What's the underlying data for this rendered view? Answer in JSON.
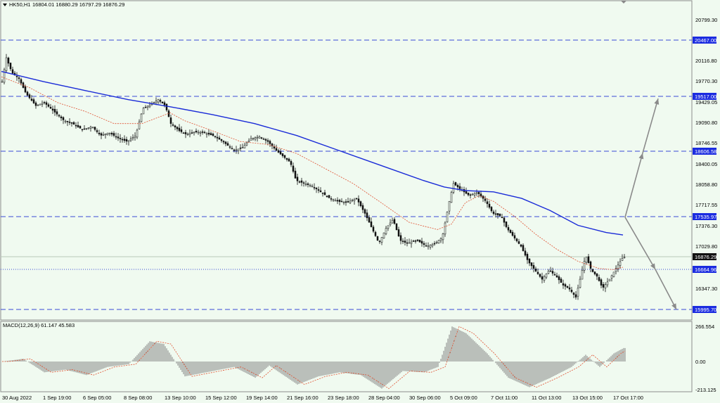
{
  "header": {
    "symbol_label": "HK50,H1",
    "ohlc": "16804.01 16880.29 16797.29 16876.29"
  },
  "macd_panel": {
    "label": "MACD(12,26,9) 61.147 45.583",
    "ticks": [
      "266.554",
      "0.00",
      "-213.125"
    ]
  },
  "price_axis": {
    "ticks": [
      "20799.30",
      "20116.80",
      "19770.30",
      "19429.05",
      "19090.80",
      "18746.55",
      "18400.05",
      "18058.80",
      "17717.55",
      "17376.30",
      "17029.80",
      "16347.30"
    ]
  },
  "levels": [
    {
      "price": "20467.00",
      "style": "dashed"
    },
    {
      "price": "19517.00",
      "style": "dashed"
    },
    {
      "price": "18606.58",
      "style": "dashed"
    },
    {
      "price": "17535.97",
      "style": "dashed"
    },
    {
      "price": "16664.96",
      "style": "dotted"
    },
    {
      "price": "15995.70",
      "style": "dashed"
    }
  ],
  "current_price": "16876.29",
  "time_axis": {
    "ticks": [
      "30 Aug 2022",
      "1 Sep 19:00",
      "6 Sep 05:00",
      "8 Sep 08:00",
      "13 Sep 10:00",
      "15 Sep 12:00",
      "19 Sep 14:00",
      "21 Sep 16:00",
      "23 Sep 18:00",
      "28 Sep 04:00",
      "30 Sep 06:00",
      "5 Oct 09:00",
      "7 Oct 11:00",
      "11 Oct 13:00",
      "13 Oct 15:00",
      "17 Oct 17:00"
    ]
  },
  "colors": {
    "background": "#f0faf0",
    "level_line": "#3a4bd6",
    "ma_slow": "#1a2bd8",
    "ma_fast": "#e05030",
    "candles": "#111111",
    "projection": "#8a8a8a",
    "label_bg": "#1a2be0",
    "label_text": "#ffffff"
  },
  "chart_data": {
    "type": "line",
    "title": "HK50,H1",
    "ylim": [
      15900,
      20950
    ],
    "price_path": [
      [
        0,
        19800
      ],
      [
        6,
        20200
      ],
      [
        14,
        19950
      ],
      [
        24,
        19850
      ],
      [
        34,
        19600
      ],
      [
        48,
        19400
      ],
      [
        60,
        19450
      ],
      [
        74,
        19300
      ],
      [
        88,
        19150
      ],
      [
        100,
        19100
      ],
      [
        114,
        19000
      ],
      [
        128,
        19050
      ],
      [
        140,
        18900
      ],
      [
        152,
        18950
      ],
      [
        166,
        18850
      ],
      [
        178,
        18800
      ],
      [
        190,
        18900
      ],
      [
        200,
        19350
      ],
      [
        212,
        19420
      ],
      [
        222,
        19500
      ],
      [
        232,
        19400
      ],
      [
        240,
        19100
      ],
      [
        252,
        18980
      ],
      [
        262,
        18920
      ],
      [
        274,
        18960
      ],
      [
        286,
        18950
      ],
      [
        300,
        18900
      ],
      [
        314,
        18800
      ],
      [
        330,
        18650
      ],
      [
        342,
        18700
      ],
      [
        354,
        18850
      ],
      [
        366,
        18880
      ],
      [
        378,
        18800
      ],
      [
        390,
        18650
      ],
      [
        400,
        18550
      ],
      [
        410,
        18450
      ],
      [
        418,
        18150
      ],
      [
        430,
        18100
      ],
      [
        442,
        18050
      ],
      [
        454,
        17950
      ],
      [
        466,
        17850
      ],
      [
        478,
        17800
      ],
      [
        490,
        17780
      ],
      [
        504,
        17850
      ],
      [
        516,
        17600
      ],
      [
        526,
        17350
      ],
      [
        536,
        17100
      ],
      [
        546,
        17350
      ],
      [
        556,
        17500
      ],
      [
        566,
        17150
      ],
      [
        576,
        17100
      ],
      [
        590,
        17150
      ],
      [
        604,
        17050
      ],
      [
        616,
        17100
      ],
      [
        626,
        17200
      ],
      [
        636,
        17800
      ],
      [
        642,
        18100
      ],
      [
        652,
        18000
      ],
      [
        664,
        17900
      ],
      [
        676,
        17950
      ],
      [
        688,
        17800
      ],
      [
        698,
        17600
      ],
      [
        710,
        17550
      ],
      [
        718,
        17350
      ],
      [
        728,
        17200
      ],
      [
        738,
        17050
      ],
      [
        748,
        16800
      ],
      [
        758,
        16650
      ],
      [
        768,
        16500
      ],
      [
        778,
        16650
      ],
      [
        788,
        16550
      ],
      [
        798,
        16400
      ],
      [
        806,
        16350
      ],
      [
        816,
        16200
      ],
      [
        822,
        16500
      ],
      [
        830,
        16900
      ],
      [
        838,
        16650
      ],
      [
        846,
        16550
      ],
      [
        854,
        16350
      ],
      [
        864,
        16500
      ],
      [
        874,
        16700
      ],
      [
        882,
        16850
      ],
      [
        886,
        16876
      ]
    ],
    "ma_slow": [
      [
        0,
        19970
      ],
      [
        60,
        19800
      ],
      [
        120,
        19650
      ],
      [
        180,
        19500
      ],
      [
        240,
        19380
      ],
      [
        300,
        19250
      ],
      [
        360,
        19100
      ],
      [
        420,
        18900
      ],
      [
        480,
        18650
      ],
      [
        540,
        18400
      ],
      [
        600,
        18150
      ],
      [
        630,
        18040
      ],
      [
        660,
        17980
      ],
      [
        700,
        17960
      ],
      [
        740,
        17850
      ],
      [
        780,
        17650
      ],
      [
        820,
        17400
      ],
      [
        860,
        17280
      ],
      [
        884,
        17240
      ]
    ],
    "ma_fast": [
      [
        0,
        19880
      ],
      [
        40,
        19700
      ],
      [
        80,
        19450
      ],
      [
        120,
        19300
      ],
      [
        160,
        19100
      ],
      [
        200,
        19100
      ],
      [
        240,
        19280
      ],
      [
        260,
        19150
      ],
      [
        300,
        18980
      ],
      [
        340,
        18800
      ],
      [
        380,
        18750
      ],
      [
        420,
        18600
      ],
      [
        460,
        18350
      ],
      [
        500,
        18100
      ],
      [
        540,
        17780
      ],
      [
        580,
        17450
      ],
      [
        620,
        17330
      ],
      [
        640,
        17420
      ],
      [
        660,
        17780
      ],
      [
        680,
        17900
      ],
      [
        700,
        17800
      ],
      [
        730,
        17550
      ],
      [
        760,
        17250
      ],
      [
        790,
        17000
      ],
      [
        820,
        16800
      ],
      [
        850,
        16680
      ],
      [
        870,
        16660
      ],
      [
        884,
        16700
      ]
    ],
    "macd_hist": [
      [
        0,
        0
      ],
      [
        30,
        20
      ],
      [
        60,
        -80
      ],
      [
        90,
        -60
      ],
      [
        120,
        -100
      ],
      [
        150,
        -40
      ],
      [
        180,
        -20
      ],
      [
        210,
        150
      ],
      [
        230,
        130
      ],
      [
        260,
        -110
      ],
      [
        300,
        -70
      ],
      [
        330,
        -40
      ],
      [
        360,
        -120
      ],
      [
        380,
        -30
      ],
      [
        420,
        -170
      ],
      [
        450,
        -110
      ],
      [
        480,
        -80
      ],
      [
        510,
        -100
      ],
      [
        540,
        -200
      ],
      [
        570,
        -70
      ],
      [
        600,
        -80
      ],
      [
        620,
        -40
      ],
      [
        640,
        260
      ],
      [
        660,
        210
      ],
      [
        690,
        60
      ],
      [
        720,
        -120
      ],
      [
        750,
        -190
      ],
      [
        780,
        -120
      ],
      [
        810,
        -40
      ],
      [
        830,
        50
      ],
      [
        850,
        -40
      ],
      [
        870,
        60
      ],
      [
        884,
        100
      ]
    ],
    "projection": [
      [
        889,
        17535.97
      ],
      [
        914,
        18606.58
      ],
      [
        936,
        19517.0
      ],
      [
        889,
        17535.97
      ],
      [
        932,
        16664.96
      ],
      [
        962,
        15995.7
      ]
    ]
  }
}
